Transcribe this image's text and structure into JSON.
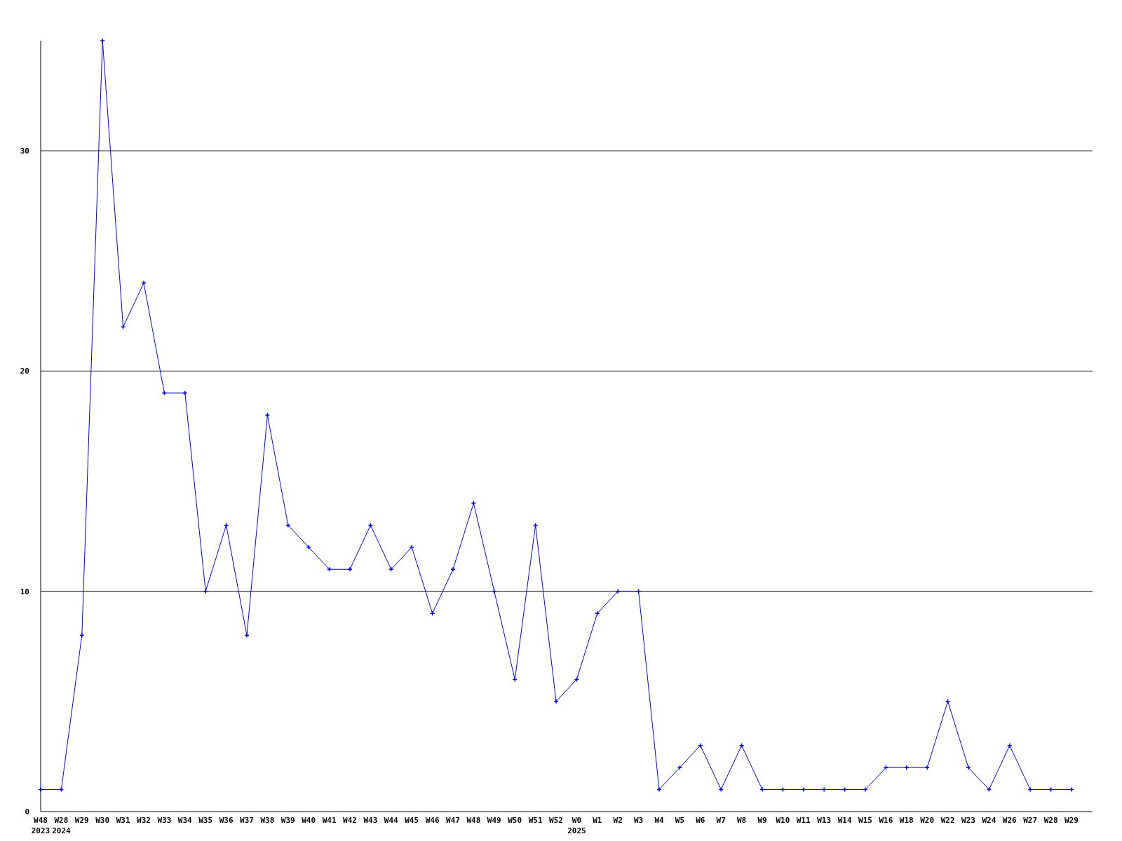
{
  "chart_data": {
    "type": "line",
    "categories": [
      "W48\n2023",
      "W28\n2024",
      "W29",
      "W30",
      "W31",
      "W32",
      "W33",
      "W34",
      "W35",
      "W36",
      "W37",
      "W38",
      "W39",
      "W40",
      "W41",
      "W42",
      "W43",
      "W44",
      "W45",
      "W46",
      "W47",
      "W48",
      "W49",
      "W50",
      "W51",
      "W52",
      "W0\n2025",
      "W1",
      "W2",
      "W3",
      "W4",
      "W5",
      "W6",
      "W7",
      "W8",
      "W9",
      "W10",
      "W11",
      "W13",
      "W14",
      "W15",
      "W16",
      "W18",
      "W20",
      "W22",
      "W23",
      "W24",
      "W26",
      "W27",
      "W28",
      "W29"
    ],
    "series": [
      {
        "color": "#0000ff",
        "values": [
          1,
          1,
          8,
          35,
          22,
          24,
          19,
          19,
          10,
          13,
          8,
          18,
          13,
          12,
          11,
          11,
          13,
          11,
          12,
          9,
          11,
          14,
          10,
          6,
          13,
          5,
          6,
          9,
          10,
          10,
          1,
          2,
          3,
          1,
          3,
          1,
          1,
          1,
          1,
          1,
          1,
          2,
          2,
          2,
          5,
          2,
          1,
          3,
          1,
          1,
          1
        ]
      }
    ],
    "ylim": [
      0,
      35
    ],
    "yticks": [
      0,
      10,
      20,
      30
    ],
    "grid": "y",
    "marker": "cross",
    "line_style": "solid"
  }
}
